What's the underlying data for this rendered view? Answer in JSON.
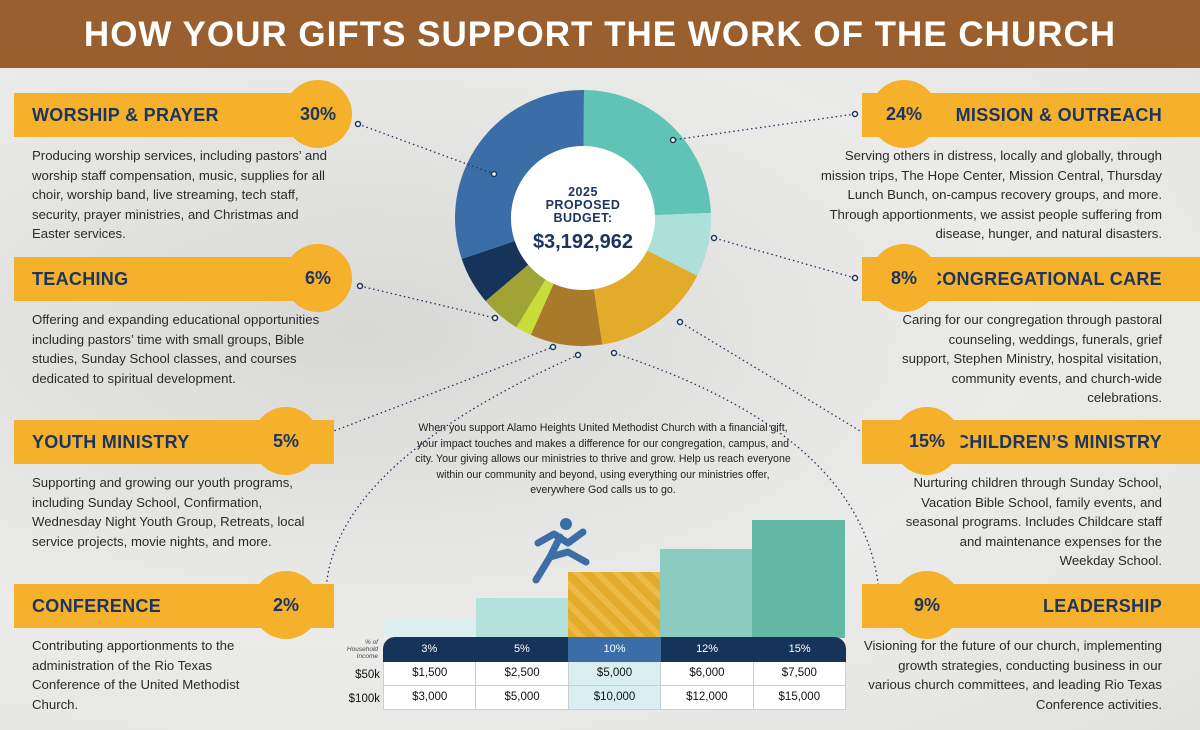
{
  "title": "HOW YOUR GIFTS SUPPORT THE WORK OF THE CHURCH",
  "budget": {
    "line1": "2025",
    "line2": "PROPOSED",
    "line3": "BUDGET:",
    "amount": "$3,192,962"
  },
  "categories": [
    {
      "name": "WORSHIP & PRAYER",
      "pct": "30%",
      "desc": "Producing worship services, including pastors’ and worship staff compensation, music, supplies for all choir, worship band, live streaming, tech staff, security, prayer ministries, and Christmas and Easter services."
    },
    {
      "name": "TEACHING",
      "pct": "6%",
      "desc": "Offering and expanding educational opportunities including pastors’ time with small groups, Bible studies, Sunday School classes, and courses dedicated to spiritual development."
    },
    {
      "name": "YOUTH MINISTRY",
      "pct": "5%",
      "desc": "Supporting and growing our youth programs, including Sunday School, Confirmation, Wednesday Night Youth Group, Retreats, local service projects, movie nights, and more."
    },
    {
      "name": "CONFERENCE",
      "pct": "2%",
      "desc": "Contributing apportionments to the administration of the Rio Texas Conference of the United Methodist Church."
    },
    {
      "name": "MISSION & OUTREACH",
      "pct": "24%",
      "desc": "Serving others in distress, locally and globally, through mission trips, The Hope Center, Mission Central, Thursday Lunch Bunch, on-campus recovery groups, and more. Through apportionments, we assist people suffering from disease, hunger, and natural disasters."
    },
    {
      "name": "CONGREGATIONAL CARE",
      "pct": "8%",
      "desc": "Caring for our congregation through pastoral counseling, weddings, funerals, grief support, Stephen Ministry, hospital visitation, community events, and church-wide celebrations."
    },
    {
      "name": "CHILDREN’S MINISTRY",
      "pct": "15%",
      "desc": "Nurturing children through Sunday School, Vacation Bible School, family events, and seasonal programs. Includes Childcare staff and maintenance expenses for the Weekday School."
    },
    {
      "name": "LEADERSHIP",
      "pct": "9%",
      "desc": "Visioning for the future of our church, implementing growth strategies, conducting business in our various church committees, and leading Rio Texas Conference activities."
    }
  ],
  "middle_text": "When you support Alamo Heights United Methodist Church with a financial gift, your impact touches and makes a difference for our congregation, campus, and city. Your giving allows our ministries to thrive and grow. Help us reach everyone within our community and beyond, using everything our ministries offer, everywhere God calls us to go.",
  "giving_table": {
    "header_label": "% of Household Income",
    "percents": [
      "3%",
      "5%",
      "10%",
      "12%",
      "15%"
    ],
    "rows": [
      {
        "label": "$50k",
        "values": [
          "$1,500",
          "$2,500",
          "$5,000",
          "$6,000",
          "$7,500"
        ]
      },
      {
        "label": "$100k",
        "values": [
          "$3,000",
          "$5,000",
          "$10,000",
          "$12,000",
          "$15,000"
        ]
      }
    ]
  },
  "chart_data": {
    "type": "pie",
    "title": "2025 Proposed Budget: $3,192,962",
    "order": "clockwise from top",
    "slices": [
      {
        "label": "Mission & Outreach",
        "value": 24,
        "color": "#5fc4b6"
      },
      {
        "label": "Congregational Care",
        "value": 8,
        "color": "#ade0da"
      },
      {
        "label": "Children's Ministry",
        "value": 15,
        "color": "#e2ac2a"
      },
      {
        "label": "Leadership",
        "value": 9,
        "color": "#a87a2a"
      },
      {
        "label": "Conference",
        "value": 2,
        "color": "#c8dc3a"
      },
      {
        "label": "Youth Ministry",
        "value": 5,
        "color": "#a0a435"
      },
      {
        "label": "Teaching",
        "value": 6,
        "color": "#16335a"
      },
      {
        "label": "Worship & Prayer",
        "value": 30,
        "color": "#3b6ea6"
      }
    ]
  }
}
